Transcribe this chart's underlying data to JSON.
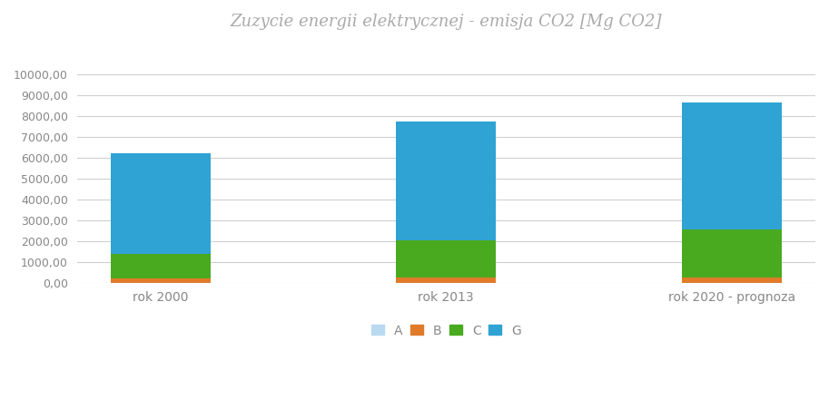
{
  "categories": [
    "rok 2000",
    "rok 2013",
    "rok 2020 - prognoza"
  ],
  "series": {
    "A": [
      0,
      0,
      0
    ],
    "B": [
      200,
      230,
      250
    ],
    "C": [
      1200,
      1800,
      2300
    ],
    "G": [
      4820,
      5700,
      6100
    ]
  },
  "colors": {
    "A": "#b8d9f0",
    "B": "#e07b29",
    "C": "#4aaa1f",
    "G": "#2fa3d4"
  },
  "title": "Zuzycie energii elektrycznej - emisja CO2 [Mg CO2]",
  "ylim": [
    0,
    10500
  ],
  "yticks": [
    0,
    1000,
    2000,
    3000,
    4000,
    5000,
    6000,
    7000,
    8000,
    9000,
    10000
  ],
  "ytick_labels": [
    "0,00",
    "1000,00",
    "2000,00",
    "3000,00",
    "4000,00",
    "5000,00",
    "6000,00",
    "7000,00",
    "8000,00",
    "9000,00",
    "10000,00"
  ],
  "background_color": "#ffffff",
  "grid_color": "#d0d0d0",
  "title_color": "#aaaaaa",
  "tick_color": "#888888",
  "bar_width": 0.35
}
